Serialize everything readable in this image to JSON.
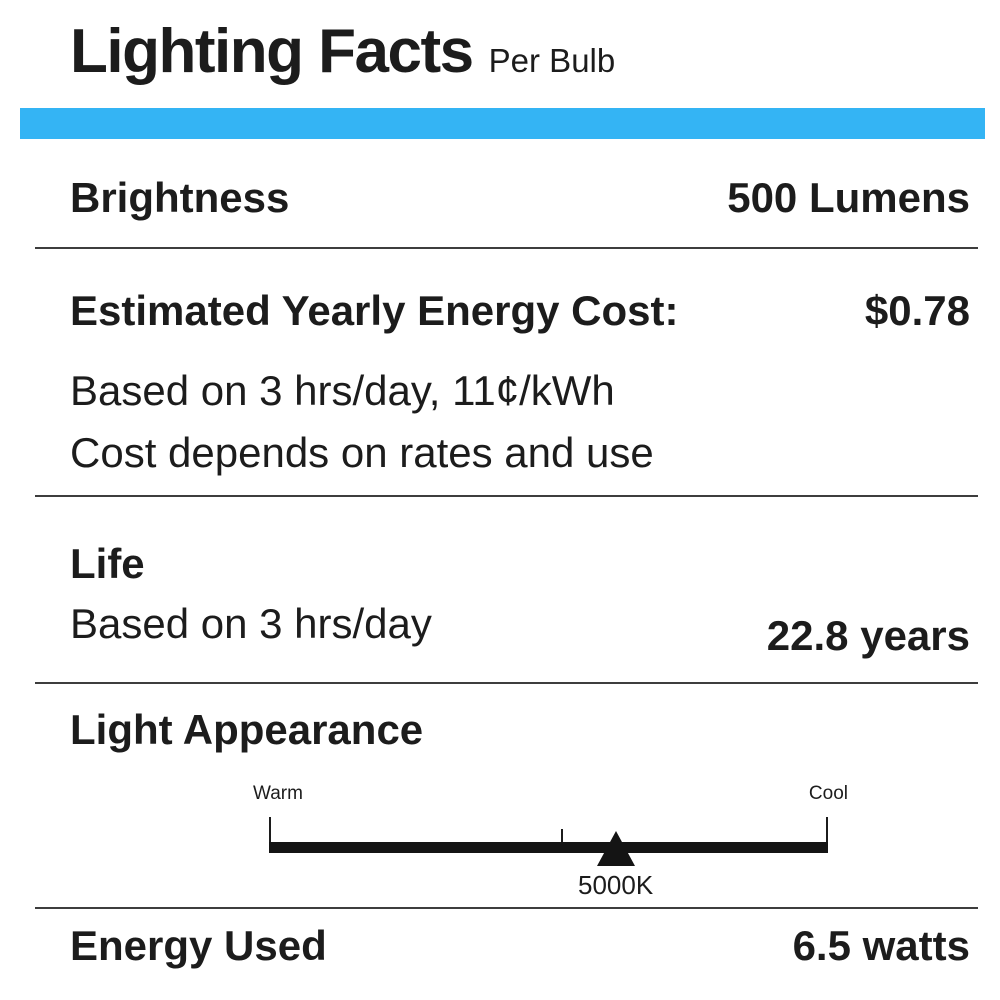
{
  "header": {
    "title": "Lighting Facts",
    "subtitle": "Per Bulb"
  },
  "colors": {
    "accent_bar": "#34B4F4",
    "text": "#1C1C1C"
  },
  "sections": {
    "brightness": {
      "label": "Brightness",
      "value": "500 Lumens"
    },
    "energy_cost": {
      "label": "Estimated Yearly Energy Cost:",
      "value": "$0.78",
      "notes": [
        "Based on 3 hrs/day, 11¢/kWh",
        "Cost depends on rates and use"
      ]
    },
    "life": {
      "label": "Life",
      "basis": "Based on 3 hrs/day",
      "value": "22.8 years"
    },
    "light_appearance": {
      "label": "Light Appearance",
      "scale": {
        "warm_label": "Warm",
        "cool_label": "Cool",
        "marker_value": "5000K",
        "marker_position_pct": 62,
        "mid_tick_position_pct": 52.3
      }
    },
    "energy_used": {
      "label": "Energy Used",
      "value": "6.5 watts"
    }
  }
}
